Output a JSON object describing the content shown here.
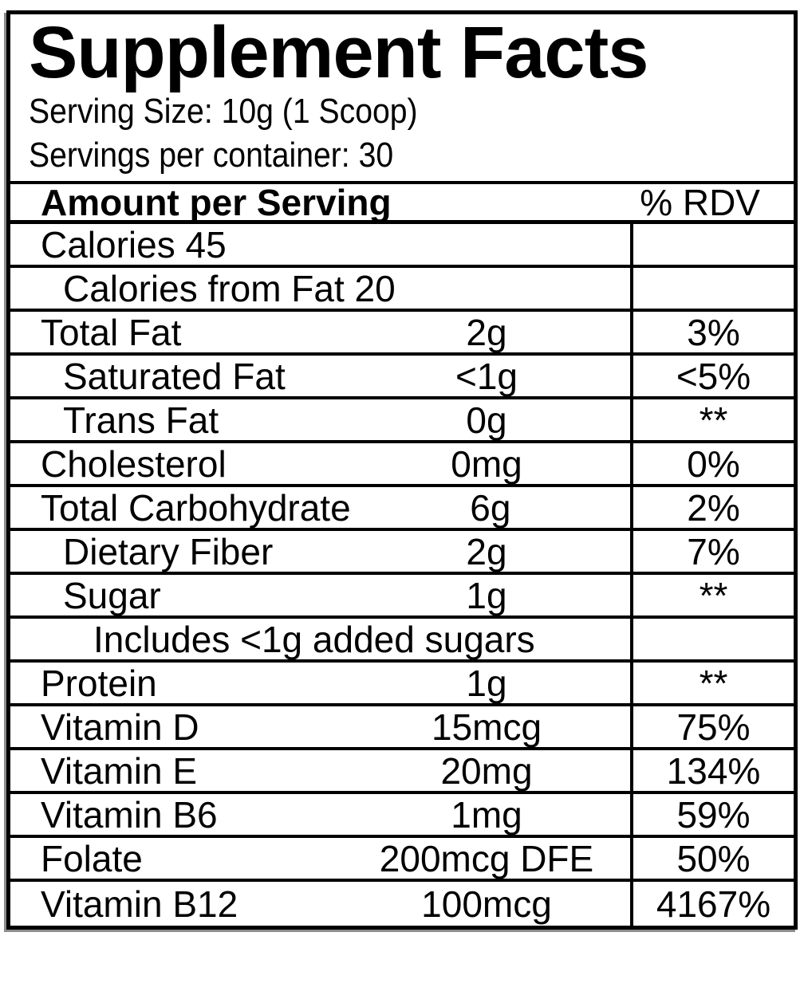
{
  "title": "Supplement Facts",
  "serving": {
    "size_line": "Serving Size: 10g (1 Scoop)",
    "count_line": "Servings per container: 30"
  },
  "table": {
    "header": {
      "amount_label": "Amount per Serving",
      "rdv_label": "% RDV"
    },
    "rows": [
      {
        "label": "Calories 45",
        "amount": "",
        "rdv": "",
        "indent": 0
      },
      {
        "label": "Calories from Fat 20",
        "amount": "",
        "rdv": "",
        "indent": 1
      },
      {
        "label": "Total Fat",
        "amount": "2g",
        "rdv": "3%",
        "indent": 0
      },
      {
        "label": "Saturated Fat",
        "amount": "<1g",
        "rdv": "<5%",
        "indent": 1
      },
      {
        "label": "Trans Fat",
        "amount": "0g",
        "rdv": "**",
        "indent": 1
      },
      {
        "label": "Cholesterol",
        "amount": "0mg",
        "rdv": "0%",
        "indent": 0
      },
      {
        "label": "Total Carbohydrate",
        "amount": "6g",
        "rdv": "2%",
        "indent": 0
      },
      {
        "label": "Dietary Fiber",
        "amount": "2g",
        "rdv": "7%",
        "indent": 1
      },
      {
        "label": "Sugar",
        "amount": "1g",
        "rdv": "**",
        "indent": 1
      },
      {
        "label": "Includes <1g added sugars",
        "amount": "",
        "rdv": "",
        "indent": 2
      },
      {
        "label": "Protein",
        "amount": "1g",
        "rdv": "**",
        "indent": 0
      },
      {
        "label": "Vitamin D",
        "amount": "15mcg",
        "rdv": "75%",
        "indent": 0
      },
      {
        "label": "Vitamin E",
        "amount": "20mg",
        "rdv": "134%",
        "indent": 0
      },
      {
        "label": "Vitamin B6",
        "amount": "1mg",
        "rdv": "59%",
        "indent": 0
      },
      {
        "label": "Folate",
        "amount": "200mcg DFE",
        "rdv": "50%",
        "indent": 0
      },
      {
        "label": "Vitamin B12",
        "amount": "100mcg",
        "rdv": "4167%",
        "indent": 0
      }
    ]
  },
  "colors": {
    "text": "#000000",
    "background": "#ffffff",
    "border": "#000000"
  }
}
